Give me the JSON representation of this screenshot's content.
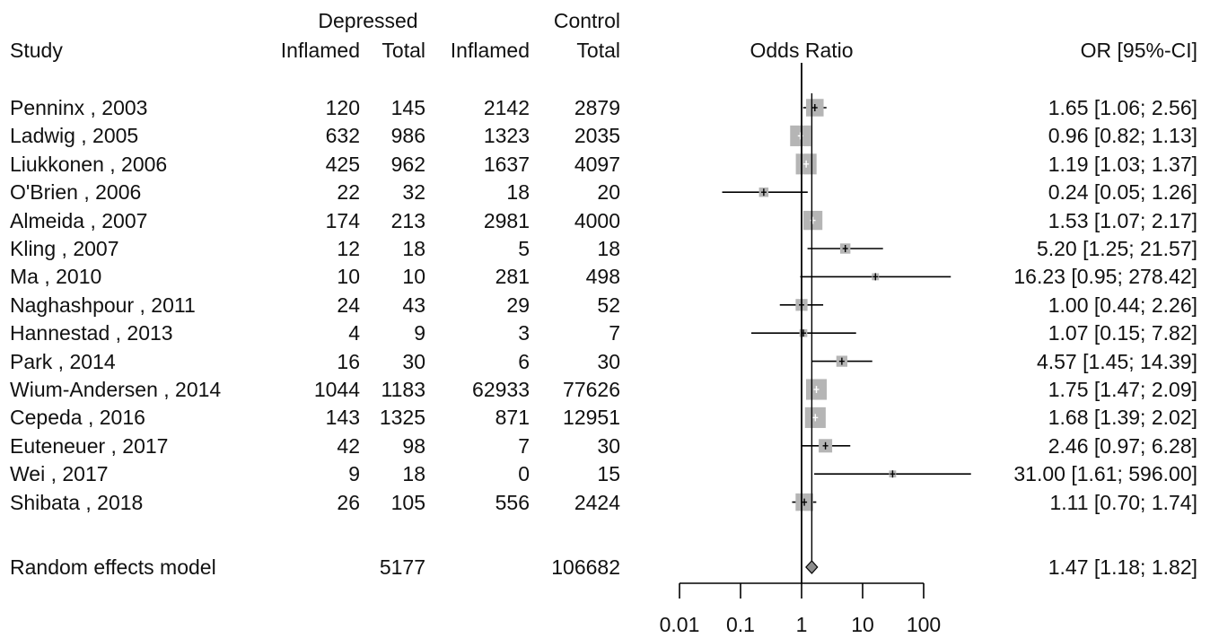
{
  "chart_data": {
    "type": "forest",
    "group_headers": {
      "depressed": "Depressed",
      "control": "Control"
    },
    "columns": {
      "study": "Study",
      "dep_inflamed": "Inflamed",
      "dep_total": "Total",
      "ctl_inflamed": "Inflamed",
      "ctl_total": "Total",
      "odds_ratio": "Odds Ratio",
      "or_ci": "OR [95%-CI]"
    },
    "x_scale": "log",
    "xlim": [
      0.01,
      100
    ],
    "reference_line": 1,
    "x_ticks": [
      {
        "value": 0.01,
        "label": "0.01"
      },
      {
        "value": 0.1,
        "label": "0.1"
      },
      {
        "value": 1,
        "label": "1"
      },
      {
        "value": 10,
        "label": "10"
      },
      {
        "value": 100,
        "label": "100"
      }
    ],
    "studies": [
      {
        "study": "Penninx , 2003",
        "dep_inflamed": "120",
        "dep_total": "145",
        "ctl_inflamed": "2142",
        "ctl_total": "2879",
        "or": 1.65,
        "lower": 1.06,
        "upper": 2.56,
        "or_text": "1.65 [1.06;  2.56]",
        "weight": 0.75
      },
      {
        "study": "Ladwig , 2005",
        "dep_inflamed": "632",
        "dep_total": "986",
        "ctl_inflamed": "1323",
        "ctl_total": "2035",
        "or": 0.96,
        "lower": 0.82,
        "upper": 1.13,
        "or_text": "0.96 [0.82;  1.13]",
        "weight": 0.95
      },
      {
        "study": "Liukkonen , 2006",
        "dep_inflamed": "425",
        "dep_total": "962",
        "ctl_inflamed": "1637",
        "ctl_total": "4097",
        "or": 1.19,
        "lower": 1.03,
        "upper": 1.37,
        "or_text": "1.19 [1.03;  1.37]",
        "weight": 0.95
      },
      {
        "study": "O'Brien , 2006",
        "dep_inflamed": "22",
        "dep_total": "32",
        "ctl_inflamed": "18",
        "ctl_total": "20",
        "or": 0.24,
        "lower": 0.05,
        "upper": 1.26,
        "or_text": "0.24 [0.05;  1.26]",
        "weight": 0.25
      },
      {
        "study": "Almeida , 2007",
        "dep_inflamed": "174",
        "dep_total": "213",
        "ctl_inflamed": "2981",
        "ctl_total": "4000",
        "or": 1.53,
        "lower": 1.07,
        "upper": 2.17,
        "or_text": "1.53 [1.07;  2.17]",
        "weight": 0.85
      },
      {
        "study": "Kling , 2007",
        "dep_inflamed": "12",
        "dep_total": "18",
        "ctl_inflamed": "5",
        "ctl_total": "18",
        "or": 5.2,
        "lower": 1.25,
        "upper": 21.57,
        "or_text": "5.20 [1.25;  21.57]",
        "weight": 0.3
      },
      {
        "study": "Ma , 2010",
        "dep_inflamed": "10",
        "dep_total": "10",
        "ctl_inflamed": "281",
        "ctl_total": "498",
        "or": 16.23,
        "lower": 0.95,
        "upper": 278.42,
        "or_text": "16.23 [0.95; 278.42]",
        "weight": 0.1
      },
      {
        "study": "Naghashpour , 2011",
        "dep_inflamed": "24",
        "dep_total": "43",
        "ctl_inflamed": "29",
        "ctl_total": "52",
        "or": 1.0,
        "lower": 0.44,
        "upper": 2.26,
        "or_text": "1.00 [0.44;  2.26]",
        "weight": 0.4
      },
      {
        "study": "Hannestad , 2013",
        "dep_inflamed": "4",
        "dep_total": "9",
        "ctl_inflamed": "3",
        "ctl_total": "7",
        "or": 1.07,
        "lower": 0.15,
        "upper": 7.82,
        "or_text": "1.07 [0.15;  7.82]",
        "weight": 0.15
      },
      {
        "study": "Park , 2014",
        "dep_inflamed": "16",
        "dep_total": "30",
        "ctl_inflamed": "6",
        "ctl_total": "30",
        "or": 4.57,
        "lower": 1.45,
        "upper": 14.39,
        "or_text": "4.57 [1.45;  14.39]",
        "weight": 0.35
      },
      {
        "study": "Wium-Andersen , 2014",
        "dep_inflamed": "1044",
        "dep_total": "1183",
        "ctl_inflamed": "62933",
        "ctl_total": "77626",
        "or": 1.75,
        "lower": 1.47,
        "upper": 2.09,
        "or_text": "1.75 [1.47;  2.09]",
        "weight": 0.95
      },
      {
        "study": "Cepeda , 2016",
        "dep_inflamed": "143",
        "dep_total": "1325",
        "ctl_inflamed": "871",
        "ctl_total": "12951",
        "or": 1.68,
        "lower": 1.39,
        "upper": 2.02,
        "or_text": "1.68 [1.39;  2.02]",
        "weight": 0.95
      },
      {
        "study": "Euteneuer , 2017",
        "dep_inflamed": "42",
        "dep_total": "98",
        "ctl_inflamed": "7",
        "ctl_total": "30",
        "or": 2.46,
        "lower": 0.97,
        "upper": 6.28,
        "or_text": "2.46 [0.97;  6.28]",
        "weight": 0.5
      },
      {
        "study": "Wei , 2017",
        "dep_inflamed": "9",
        "dep_total": "18",
        "ctl_inflamed": "0",
        "ctl_total": "15",
        "or": 31.0,
        "lower": 1.61,
        "upper": 596.0,
        "or_text": "31.00 [1.61; 596.00]",
        "weight": 0.1
      },
      {
        "study": "Shibata , 2018",
        "dep_inflamed": "26",
        "dep_total": "105",
        "ctl_inflamed": "556",
        "ctl_total": "2424",
        "or": 1.11,
        "lower": 0.7,
        "upper": 1.74,
        "or_text": "1.11 [0.70;  1.74]",
        "weight": 0.75
      }
    ],
    "pooled": {
      "label": "Random effects model",
      "dep_total": "5177",
      "ctl_total": "106682",
      "or": 1.47,
      "lower": 1.18,
      "upper": 1.82,
      "or_text": "1.47 [1.18;  1.82]"
    },
    "colors": {
      "square": "#b5b5b5",
      "line": "#000000",
      "diamond": "#8c8c8c"
    }
  }
}
